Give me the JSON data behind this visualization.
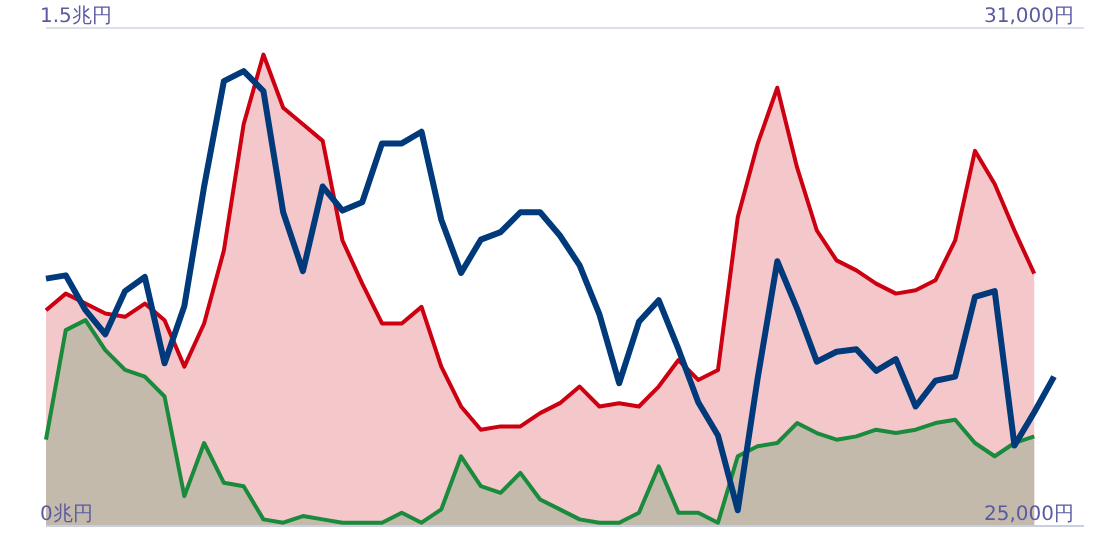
{
  "chart_data": {
    "type": "area",
    "categories": [
      null,
      null,
      null,
      null,
      null,
      null,
      null,
      null,
      null,
      null,
      null,
      null,
      null,
      null,
      null,
      null,
      null,
      null,
      null,
      null,
      null,
      null,
      null,
      null,
      null,
      null,
      null,
      null,
      null,
      null,
      null,
      null,
      null,
      null,
      null,
      null,
      null,
      null,
      null,
      null,
      null,
      null,
      null,
      null,
      null,
      null,
      null,
      null,
      null,
      null,
      null,
      null
    ],
    "ylim": [
      0,
      1.5
    ],
    "yticks": [
      {
        "value": 0,
        "label": "0兆円"
      },
      {
        "value": 1.5,
        "label": "1.5兆円"
      }
    ],
    "y2lim": [
      25000,
      31000
    ],
    "y2ticks": [
      {
        "value": 25000,
        "label": "25,000円"
      },
      {
        "value": 31000,
        "label": "31,000円"
      }
    ],
    "grid": "y",
    "series": [
      {
        "color": "#cc0011",
        "values": [
          0.65,
          0.7,
          0.67,
          0.64,
          0.63,
          0.67,
          0.62,
          0.48,
          0.61,
          0.83,
          1.21,
          1.42,
          1.26,
          1.21,
          1.16,
          0.86,
          0.73,
          0.61,
          0.61,
          0.66,
          0.48,
          0.36,
          0.29,
          0.3,
          0.3,
          0.34,
          0.37,
          0.42,
          0.36,
          0.37,
          0.36,
          0.42,
          0.5,
          0.44,
          0.47,
          0.93,
          1.15,
          1.32,
          1.08,
          0.89,
          0.8,
          0.77,
          0.73,
          0.7,
          0.71,
          0.74,
          0.86,
          1.13,
          1.03,
          0.89,
          0.76,
          null
        ]
      },
      {
        "color": "#1a8a3c",
        "values": [
          0.26,
          0.59,
          0.62,
          0.53,
          0.47,
          0.45,
          0.39,
          0.09,
          0.25,
          0.13,
          0.12,
          0.02,
          0.01,
          0.03,
          0.02,
          0.01,
          0.01,
          0.01,
          0.04,
          0.01,
          0.05,
          0.21,
          0.12,
          0.1,
          0.16,
          0.08,
          0.05,
          0.02,
          0.01,
          0.01,
          0.04,
          0.18,
          0.04,
          0.04,
          0.01,
          0.21,
          0.24,
          0.25,
          0.31,
          0.28,
          0.26,
          0.27,
          0.29,
          0.28,
          0.29,
          0.31,
          0.32,
          0.25,
          0.21,
          0.25,
          0.27,
          null
        ]
      },
      {
        "type": "line",
        "axis": "y2",
        "color": "#003a7a",
        "values": [
          27980,
          28020,
          27600,
          27310,
          27830,
          28000,
          26960,
          27650,
          29090,
          30360,
          30480,
          30240,
          28780,
          28070,
          29090,
          28800,
          28900,
          29610,
          29610,
          29750,
          28690,
          28050,
          28450,
          28540,
          28780,
          28780,
          28500,
          28140,
          27550,
          26720,
          27460,
          27720,
          27130,
          26490,
          26090,
          25190,
          26770,
          28190,
          27620,
          26980,
          27100,
          27130,
          26870,
          27010,
          26440,
          26750,
          26800,
          27760,
          27830,
          25970,
          26370,
          26800
        ]
      }
    ]
  }
}
